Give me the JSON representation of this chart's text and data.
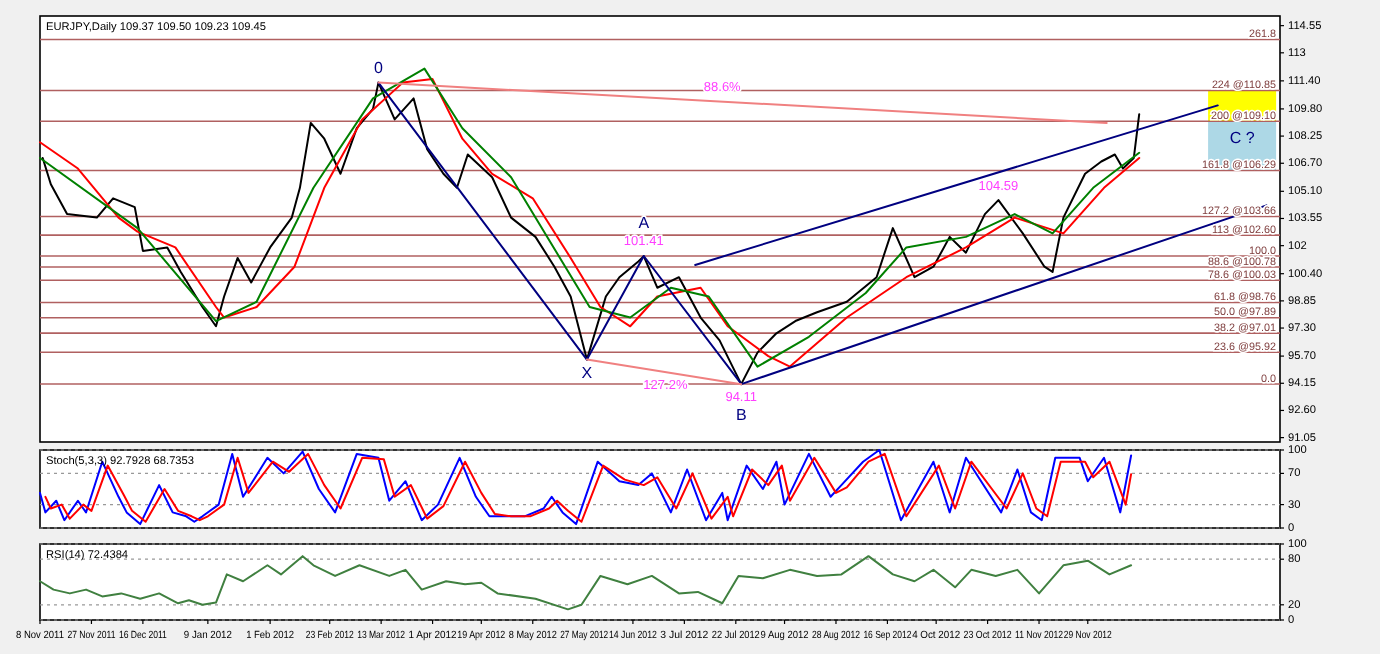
{
  "chart_data": [
    {
      "type": "line",
      "title": "EURJPY,Daily 109.37 109.50 109.23 109.45",
      "xlim": [
        "2011-11-08",
        "2013-02-08"
      ],
      "ylim": [
        90.8,
        115.1
      ],
      "yticks": [
        114.55,
        113.0,
        {
          "value": 111.4,
          "label": "111.40"
        },
        {
          "value": 109.8,
          "label": "109.80"
        },
        108.25,
        {
          "value": 106.7,
          "label": "106.70"
        },
        {
          "value": 105.1,
          "label": "105.10"
        },
        103.55,
        102.0,
        {
          "value": 100.4,
          "label": "100.40"
        },
        98.85,
        {
          "value": 97.3,
          "label": "97.30"
        },
        {
          "value": 95.7,
          "label": "95.70"
        },
        94.15,
        {
          "value": 92.6,
          "label": "92.60"
        },
        91.05
      ],
      "tick_labels": "y",
      "legend": false,
      "grid": false,
      "series": [
        {
          "color": "#000000",
          "x": [
            "2011-11-09",
            "2011-11-12",
            "2011-11-18",
            "2011-11-29",
            "2011-12-05",
            "2011-12-13",
            "2011-12-16",
            "2011-12-25",
            "2011-12-30",
            "2012-01-07",
            "2012-01-12",
            "2012-01-15",
            "2012-01-20",
            "2012-01-25",
            "2012-02-01",
            "2012-02-09",
            "2012-02-12",
            "2012-02-16",
            "2012-02-21",
            "2012-02-27",
            "2012-03-04",
            "2012-03-10",
            "2012-03-12",
            "2012-03-18",
            "2012-03-25",
            "2012-03-30",
            "2012-04-05",
            "2012-04-10",
            "2012-04-14",
            "2012-04-23",
            "2012-04-30",
            "2012-05-09",
            "2012-05-16",
            "2012-05-22",
            "2012-05-28",
            "2012-06-04",
            "2012-06-09",
            "2012-06-16",
            "2012-06-18",
            "2012-06-23",
            "2012-07-01",
            "2012-07-09",
            "2012-07-16",
            "2012-07-24",
            "2012-07-30",
            "2012-08-06",
            "2012-08-13",
            "2012-08-21",
            "2012-09-01",
            "2012-09-12",
            "2012-09-18",
            "2012-09-26",
            "2012-10-03",
            "2012-10-09",
            "2012-10-15",
            "2012-10-22",
            "2012-10-27",
            "2012-11-05",
            "2012-11-13",
            "2012-11-16",
            "2012-11-20",
            "2012-11-28",
            "2012-12-04",
            "2012-12-09",
            "2012-12-12",
            "2012-12-16",
            "2012-12-18"
          ],
          "values": [
            107.0,
            105.5,
            103.8,
            103.6,
            104.7,
            104.2,
            101.7,
            101.9,
            100.5,
            98.5,
            97.4,
            99.1,
            101.3,
            99.9,
            101.9,
            103.6,
            105.3,
            109.0,
            108.1,
            106.1,
            108.7,
            109.8,
            111.3,
            109.2,
            110.4,
            107.5,
            106.1,
            105.3,
            107.2,
            105.9,
            103.6,
            102.5,
            100.8,
            99.1,
            95.5,
            99.1,
            100.2,
            101.1,
            101.4,
            99.6,
            100.2,
            97.9,
            96.6,
            94.1,
            95.9,
            97.0,
            97.7,
            98.2,
            98.8,
            100.2,
            103.0,
            100.2,
            100.8,
            102.5,
            101.6,
            103.8,
            104.6,
            102.7,
            100.8,
            100.5,
            103.6,
            106.1,
            106.8,
            107.2,
            106.4,
            107.0,
            109.5
          ]
        },
        {
          "color": "#ff0000",
          "x": [
            "2011-11-08",
            "2011-11-22",
            "2011-12-07",
            "2011-12-14",
            "2011-12-28",
            "2012-01-12",
            "2012-01-15",
            "2012-01-27",
            "2012-02-10",
            "2012-02-21",
            "2012-03-06",
            "2012-03-21",
            "2012-04-01",
            "2012-04-12",
            "2012-04-23",
            "2012-05-08",
            "2012-05-22",
            "2012-06-02",
            "2012-06-13",
            "2012-06-23",
            "2012-07-09",
            "2012-07-19",
            "2012-08-03",
            "2012-08-11",
            "2012-09-01",
            "2012-09-23",
            "2012-10-15",
            "2012-11-02",
            "2012-11-20",
            "2012-12-05",
            "2012-12-18"
          ],
          "values": [
            107.9,
            106.4,
            103.6,
            102.8,
            101.9,
            98.5,
            97.9,
            98.5,
            100.8,
            105.3,
            109.2,
            111.3,
            111.5,
            108.1,
            106.1,
            104.7,
            101.3,
            98.5,
            97.4,
            99.1,
            99.6,
            97.4,
            95.7,
            95.1,
            97.9,
            100.2,
            101.9,
            103.6,
            102.7,
            105.3,
            107.0
          ]
        },
        {
          "color": "#008000",
          "x": [
            "2011-11-08",
            "2011-12-14",
            "2012-01-12",
            "2012-01-27",
            "2012-02-17",
            "2012-03-10",
            "2012-03-29",
            "2012-04-12",
            "2012-04-30",
            "2012-05-29",
            "2012-06-13",
            "2012-06-28",
            "2012-07-12",
            "2012-07-30",
            "2012-08-18",
            "2012-09-08",
            "2012-09-23",
            "2012-10-15",
            "2012-11-02",
            "2012-11-16",
            "2012-12-01",
            "2012-12-18"
          ],
          "values": [
            107.0,
            103.0,
            97.7,
            98.8,
            105.3,
            110.4,
            112.1,
            108.7,
            105.9,
            98.5,
            97.9,
            99.6,
            99.1,
            95.1,
            96.8,
            99.3,
            101.9,
            102.5,
            103.8,
            102.7,
            105.3,
            107.3
          ]
        },
        {
          "color": "#000080",
          "x": [
            "2012-03-12",
            "2012-05-28",
            "2012-06-18",
            "2012-07-24"
          ],
          "values": [
            111.3,
            95.5,
            101.41,
            94.11
          ]
        },
        {
          "color": "#000080",
          "x": [
            "2012-07-07",
            "2013-01-16"
          ],
          "values": [
            100.9,
            110.0
          ]
        },
        {
          "color": "#000080",
          "x": [
            "2012-07-24",
            "2013-02-03"
          ],
          "values": [
            94.1,
            104.3
          ]
        },
        {
          "color": "#f08080",
          "x": [
            "2012-03-12",
            "2012-12-06"
          ],
          "values": [
            111.3,
            109.0
          ]
        },
        {
          "color": "#f08080",
          "x": [
            "2012-05-28",
            "2012-07-24"
          ],
          "values": [
            95.5,
            94.1
          ]
        },
        {
          "type": "bar",
          "color": "#ffff00",
          "x": [
            "2013-01-25"
          ],
          "base": [
            109.1
          ],
          "values": [
            1.75
          ]
        },
        {
          "type": "bar",
          "color": "#add8e6",
          "x": [
            "2013-01-25"
          ],
          "base": [
            106.29
          ],
          "values": [
            2.81
          ]
        }
      ],
      "ref_lines": [
        {
          "axis": "y",
          "value": 113.76,
          "color": "#b06060"
        },
        {
          "axis": "y",
          "value": 110.85,
          "label": "224 @110.85",
          "color": "#b06060"
        },
        {
          "axis": "y",
          "value": 109.1,
          "label": "200 @109.10",
          "color": "#b06060"
        },
        {
          "axis": "y",
          "value": 106.29,
          "label": "161.8 @106.29",
          "color": "#b06060"
        },
        {
          "axis": "y",
          "value": 103.66,
          "label": "127.2 @103.66",
          "color": "#b06060"
        },
        {
          "axis": "y",
          "value": 102.6,
          "label": "113 @102.60",
          "color": "#b06060"
        },
        {
          "axis": "y",
          "value": 101.41,
          "color": "#b06060"
        },
        {
          "axis": "y",
          "value": 100.78,
          "label": "88.6 @100.78",
          "color": "#b06060"
        },
        {
          "axis": "y",
          "value": 100.03,
          "label": "78.6 @100.03",
          "color": "#b06060"
        },
        {
          "axis": "y",
          "value": 98.76,
          "label": "61.8 @98.76",
          "color": "#b06060"
        },
        {
          "axis": "y",
          "value": 97.89,
          "label": "50.0 @97.89",
          "color": "#b06060"
        },
        {
          "axis": "y",
          "value": 97.01,
          "label": "38.2 @97.01",
          "color": "#b06060"
        },
        {
          "axis": "y",
          "value": 95.92,
          "label": "23.6 @95.92",
          "color": "#b06060"
        },
        {
          "axis": "y",
          "value": 94.11,
          "color": "#b06060"
        }
      ],
      "annotations": [
        {
          "text": "261.8",
          "x": "2013-02-08",
          "y": 113.76
        },
        {
          "text": "100.0",
          "x": "2013-02-08",
          "y": 101.41
        },
        {
          "text": "0.0",
          "x": "2013-02-08",
          "y": 94.11
        },
        {
          "text": "0",
          "x": "2012-03-12",
          "y": 111.3
        },
        {
          "text": "X",
          "x": "2012-05-28",
          "y": 95.5
        },
        {
          "text": "A",
          "x": "2012-06-18",
          "y": 101.41
        },
        {
          "text": "101.41",
          "x": "2012-06-18",
          "y": 101.41
        },
        {
          "text": "94.11",
          "x": "2012-07-24",
          "y": 94.11
        },
        {
          "text": "B",
          "x": "2012-07-24",
          "y": 94.11
        },
        {
          "text": "127.2%",
          "x": "2012-06-26",
          "y": 94.8
        },
        {
          "text": "88.6%",
          "x": "2012-07-17",
          "y": 110.2
        },
        {
          "text": "104.59",
          "x": "2012-10-27",
          "y": 104.6
        },
        "C ?"
      ]
    },
    {
      "type": "line",
      "title": "Stoch(5,3,3) 92.7928 68.7353",
      "xlim": [
        "2011-11-08",
        "2013-02-08"
      ],
      "ylim": [
        0,
        100
      ],
      "yticks": [
        0,
        30,
        70,
        100
      ],
      "tick_labels": "y",
      "legend": false,
      "grid": "y",
      "series": [
        {
          "color": "#0000ff",
          "x": [
            "2011-11-08",
            "2011-11-10",
            "2011-11-14",
            "2011-11-17",
            "2011-11-22",
            "2011-11-25",
            "2011-12-01",
            "2011-12-07",
            "2011-12-10",
            "2011-12-15",
            "2011-12-22",
            "2011-12-27",
            "2012-01-01",
            "2012-01-04",
            "2012-01-07",
            "2012-01-13",
            "2012-01-18",
            "2012-01-22",
            "2012-01-31",
            "2012-02-06",
            "2012-02-13",
            "2012-02-19",
            "2012-02-25",
            "2012-03-04",
            "2012-03-12",
            "2012-03-16",
            "2012-03-22",
            "2012-03-28",
            "2012-04-03",
            "2012-04-11",
            "2012-04-17",
            "2012-04-22",
            "2012-04-28",
            "2012-05-05",
            "2012-05-12",
            "2012-05-15",
            "2012-05-19",
            "2012-05-24",
            "2012-06-01",
            "2012-06-09",
            "2012-06-16",
            "2012-06-21",
            "2012-06-28",
            "2012-07-04",
            "2012-07-11",
            "2012-07-17",
            "2012-07-19",
            "2012-07-26",
            "2012-08-01",
            "2012-08-06",
            "2012-08-09",
            "2012-08-18",
            "2012-08-26",
            "2012-08-30",
            "2012-09-07",
            "2012-09-13",
            "2012-09-21",
            "2012-10-03",
            "2012-10-09",
            "2012-10-15",
            "2012-10-28",
            "2012-11-03",
            "2012-11-08",
            "2012-11-12",
            "2012-11-17",
            "2012-11-26",
            "2012-11-29",
            "2012-12-05",
            "2012-12-11",
            "2012-12-15"
          ],
          "values": [
            45,
            20,
            35,
            10,
            35,
            20,
            85,
            40,
            20,
            5,
            55,
            20,
            15,
            8,
            15,
            30,
            95,
            40,
            90,
            70,
            98,
            50,
            20,
            95,
            90,
            35,
            60,
            10,
            30,
            90,
            40,
            15,
            15,
            15,
            25,
            40,
            20,
            5,
            85,
            60,
            55,
            70,
            20,
            75,
            10,
            45,
            10,
            80,
            50,
            85,
            30,
            95,
            40,
            55,
            85,
            100,
            10,
            85,
            20,
            90,
            20,
            75,
            20,
            10,
            90,
            90,
            60,
            90,
            20,
            93
          ]
        },
        {
          "color": "#ff0000",
          "x": [
            "2011-11-10",
            "2011-11-12",
            "2011-11-16",
            "2011-11-19",
            "2011-11-24",
            "2011-11-27",
            "2011-12-03",
            "2011-12-09",
            "2011-12-12",
            "2011-12-17",
            "2011-12-24",
            "2011-12-29",
            "2012-01-03",
            "2012-01-06",
            "2012-01-09",
            "2012-01-15",
            "2012-01-20",
            "2012-01-24",
            "2012-02-02",
            "2012-02-08",
            "2012-02-15",
            "2012-02-21",
            "2012-02-27",
            "2012-03-06",
            "2012-03-14",
            "2012-03-18",
            "2012-03-24",
            "2012-03-30",
            "2012-04-05",
            "2012-04-13",
            "2012-04-19",
            "2012-04-24",
            "2012-04-30",
            "2012-05-07",
            "2012-05-14",
            "2012-05-17",
            "2012-05-21",
            "2012-05-26",
            "2012-06-03",
            "2012-06-11",
            "2012-06-18",
            "2012-06-23",
            "2012-06-30",
            "2012-07-06",
            "2012-07-13",
            "2012-07-19",
            "2012-07-21",
            "2012-07-28",
            "2012-08-03",
            "2012-08-08",
            "2012-08-11",
            "2012-08-20",
            "2012-08-28",
            "2012-09-01",
            "2012-09-09",
            "2012-09-15",
            "2012-09-23",
            "2012-10-05",
            "2012-10-11",
            "2012-10-17",
            "2012-10-30",
            "2012-11-05",
            "2012-11-10",
            "2012-11-14",
            "2012-11-19",
            "2012-11-28",
            "2012-12-01",
            "2012-12-07",
            "2012-12-13",
            "2012-12-15"
          ],
          "values": [
            40,
            25,
            30,
            12,
            30,
            22,
            80,
            42,
            22,
            8,
            50,
            22,
            15,
            10,
            15,
            30,
            90,
            45,
            85,
            72,
            95,
            55,
            25,
            90,
            88,
            40,
            55,
            12,
            28,
            85,
            45,
            18,
            15,
            15,
            25,
            35,
            22,
            8,
            80,
            62,
            55,
            65,
            25,
            70,
            12,
            40,
            15,
            75,
            55,
            80,
            35,
            90,
            45,
            52,
            85,
            95,
            15,
            80,
            25,
            85,
            25,
            70,
            25,
            15,
            85,
            85,
            65,
            85,
            30,
            69
          ]
        }
      ]
    },
    {
      "type": "line",
      "title": "RSI(14) 72.4384",
      "xlim": [
        "2011-11-08",
        "2013-02-08"
      ],
      "ylim": [
        0,
        100
      ],
      "yticks": [
        0,
        20,
        80,
        100
      ],
      "legend": false,
      "grid": "y",
      "xticks": [
        {
          "value": "2011-11-08",
          "label": "8 Nov 2011"
        },
        {
          "value": "2011-11-27",
          "label": "27 Nov 2011"
        },
        {
          "value": "2011-12-16",
          "label": "16 Dec 2011"
        },
        {
          "value": "2012-01-09",
          "label": "9 Jan 2012"
        },
        {
          "value": "2012-02-01",
          "label": "1 Feb 2012"
        },
        {
          "value": "2012-02-23",
          "label": "23 Feb 2012"
        },
        {
          "value": "2012-03-13",
          "label": "13 Mar 2012"
        },
        {
          "value": "2012-04-01",
          "label": "1 Apr 2012"
        },
        {
          "value": "2012-04-19",
          "label": "19 Apr 2012"
        },
        {
          "value": "2012-05-08",
          "label": "8 May 2012"
        },
        {
          "value": "2012-05-27",
          "label": "27 May 2012"
        },
        {
          "value": "2012-06-14",
          "label": "14 Jun 2012"
        },
        {
          "value": "2012-07-03",
          "label": "3 Jul 2012"
        },
        {
          "value": "2012-07-22",
          "label": "22 Jul 2012"
        },
        {
          "value": "2012-08-09",
          "label": "9 Aug 2012"
        },
        {
          "value": "2012-08-28",
          "label": "28 Aug 2012"
        },
        {
          "value": "2012-09-16",
          "label": "16 Sep 2012"
        },
        {
          "value": "2012-10-04",
          "label": "4 Oct 2012"
        },
        {
          "value": "2012-10-23",
          "label": "23 Oct 2012"
        },
        {
          "value": "2012-11-11",
          "label": "11 Nov 2012"
        },
        {
          "value": "2012-11-29",
          "label": "29 Nov 2012"
        }
      ],
      "series": [
        {
          "color": "#408040",
          "x": [
            "2011-11-08",
            "2011-11-13",
            "2011-11-19",
            "2011-11-25",
            "2011-12-01",
            "2011-12-08",
            "2011-12-15",
            "2011-12-22",
            "2011-12-29",
            "2012-01-02",
            "2012-01-07",
            "2012-01-12",
            "2012-01-16",
            "2012-01-22",
            "2012-01-31",
            "2012-02-05",
            "2012-02-13",
            "2012-02-17",
            "2012-02-25",
            "2012-03-05",
            "2012-03-16",
            "2012-03-22",
            "2012-03-28",
            "2012-04-06",
            "2012-04-13",
            "2012-04-19",
            "2012-04-25",
            "2012-05-09",
            "2012-05-21",
            "2012-05-26",
            "2012-06-02",
            "2012-06-12",
            "2012-06-21",
            "2012-07-01",
            "2012-07-08",
            "2012-07-17",
            "2012-07-23",
            "2012-08-01",
            "2012-08-11",
            "2012-08-21",
            "2012-08-30",
            "2012-09-09",
            "2012-09-18",
            "2012-09-26",
            "2012-10-03",
            "2012-10-11",
            "2012-10-17",
            "2012-10-26",
            "2012-11-03",
            "2012-11-11",
            "2012-11-20",
            "2012-11-29",
            "2012-12-07",
            "2012-12-15"
          ],
          "values": [
            51,
            40,
            35,
            40,
            31,
            35,
            28,
            35,
            22,
            26,
            20,
            23,
            60,
            51,
            72,
            60,
            84,
            72,
            58,
            72,
            58,
            66,
            40,
            51,
            47,
            49,
            35,
            28,
            14,
            20,
            58,
            47,
            58,
            35,
            37,
            22,
            58,
            55,
            66,
            58,
            60,
            84,
            60,
            51,
            66,
            43,
            66,
            58,
            66,
            35,
            72,
            78,
            60,
            72
          ]
        }
      ]
    }
  ]
}
